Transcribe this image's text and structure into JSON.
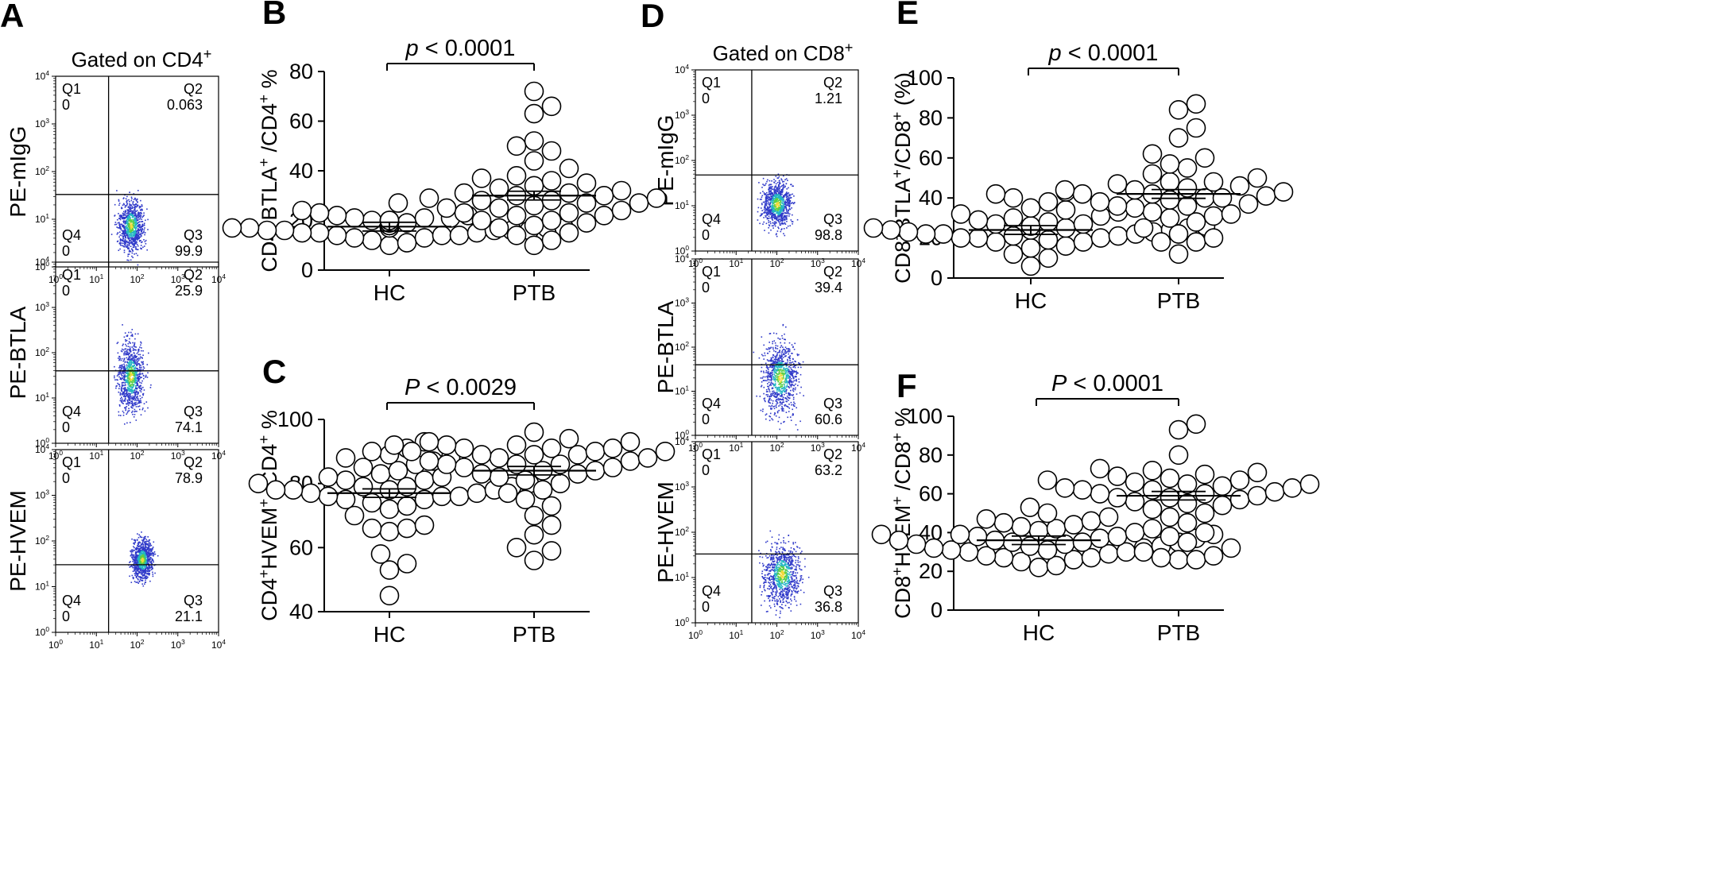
{
  "panel_letters": [
    "A",
    "B",
    "C",
    "D",
    "E",
    "F"
  ],
  "flow": [
    {
      "letter": "A",
      "title": "Gated on CD4",
      "title_sup": "+",
      "decade_labels": [
        "10",
        "10",
        "10",
        "10",
        "10"
      ],
      "decade_exps": [
        "0",
        "1",
        "2",
        "3",
        "4"
      ],
      "rows": [
        {
          "ylabel": "PE-mIgG",
          "quads": {
            "q1": "Q1",
            "q1v": "0",
            "q2": "Q2",
            "q2v": "0.063",
            "q3": "Q3",
            "q3v": "99.9",
            "q4": "Q4",
            "q4v": "0"
          }
        },
        {
          "ylabel": "PE-BTLA",
          "quads": {
            "q1": "Q1",
            "q1v": "0",
            "q2": "Q2",
            "q2v": "25.9",
            "q3": "Q3",
            "q3v": "74.1",
            "q4": "Q4",
            "q4v": "0"
          }
        },
        {
          "ylabel": "PE-HVEM",
          "quads": {
            "q1": "Q1",
            "q1v": "0",
            "q2": "Q2",
            "q2v": "78.9",
            "q3": "Q3",
            "q3v": "21.1",
            "q4": "Q4",
            "q4v": "0"
          }
        }
      ]
    },
    {
      "letter": "D",
      "title": "Gated on CD8",
      "title_sup": "+",
      "decade_labels": [
        "10",
        "10",
        "10",
        "10",
        "10"
      ],
      "decade_exps": [
        "0",
        "1",
        "2",
        "3",
        "4"
      ],
      "rows": [
        {
          "ylabel": "PE-mIgG",
          "quads": {
            "q1": "Q1",
            "q1v": "0",
            "q2": "Q2",
            "q2v": "1.21",
            "q3": "Q3",
            "q3v": "98.8",
            "q4": "Q4",
            "q4v": "0"
          }
        },
        {
          "ylabel": "PE-BTLA",
          "quads": {
            "q1": "Q1",
            "q1v": "0",
            "q2": "Q2",
            "q2v": "39.4",
            "q3": "Q3",
            "q3v": "60.6",
            "q4": "Q4",
            "q4v": "0"
          }
        },
        {
          "ylabel": "PE-HVEM",
          "quads": {
            "q1": "Q1",
            "q1v": "0",
            "q2": "Q2",
            "q2v": "63.2",
            "q3": "Q3",
            "q3v": "36.8",
            "q4": "Q4",
            "q4v": "0"
          }
        }
      ]
    }
  ],
  "chart_data": [
    {
      "letter": "B",
      "type": "scatter",
      "ylabel_parts": [
        "CD4",
        "+",
        "BTLA",
        "+",
        " /CD4",
        "+",
        " %"
      ],
      "ylim": [
        0,
        80
      ],
      "yticks": [
        0,
        20,
        40,
        60,
        80
      ],
      "categories": [
        "HC",
        "PTB"
      ],
      "p_prefix": "p",
      "p_text": " < 0.0001",
      "series": [
        {
          "name": "HC",
          "mean": 17.5,
          "values": [
            12,
            13,
            14,
            15,
            15,
            16,
            16,
            16,
            17,
            17,
            17,
            17,
            18,
            18,
            18,
            18,
            19,
            19,
            19,
            20,
            20,
            21,
            21,
            22,
            23,
            24,
            27,
            14,
            15,
            16,
            17,
            18,
            19,
            20,
            22,
            11,
            10,
            13,
            14,
            16,
            18,
            20,
            21
          ]
        },
        {
          "name": "PTB",
          "mean": 30,
          "values": [
            10,
            12,
            15,
            17,
            18,
            20,
            20,
            22,
            22,
            23,
            24,
            25,
            25,
            26,
            27,
            27,
            28,
            29,
            29,
            30,
            30,
            31,
            31,
            32,
            33,
            34,
            35,
            36,
            37,
            38,
            41,
            44,
            48,
            50,
            52,
            63,
            66,
            72,
            14,
            19,
            23,
            28
          ]
        }
      ]
    },
    {
      "letter": "C",
      "type": "scatter",
      "ylabel_parts": [
        "CD4",
        "+",
        "HVEM",
        "+",
        " /CD4",
        "+",
        " %"
      ],
      "ylim": [
        40,
        100
      ],
      "yticks": [
        40,
        60,
        80,
        100
      ],
      "categories": [
        "HC",
        "PTB"
      ],
      "p_prefix": "P",
      "p_text": " < 0.0029",
      "series": [
        {
          "name": "HC",
          "mean": 77,
          "values": [
            45,
            53,
            55,
            58,
            65,
            66,
            66,
            67,
            70,
            72,
            73,
            74,
            75,
            75,
            76,
            76,
            77,
            77,
            78,
            78,
            78,
            79,
            79,
            80,
            80,
            81,
            81,
            82,
            82,
            83,
            84,
            85,
            86,
            87,
            88,
            88,
            89,
            90,
            91,
            93,
            76,
            78,
            79
          ]
        },
        {
          "name": "PTB",
          "mean": 84,
          "values": [
            56,
            59,
            60,
            64,
            67,
            70,
            73,
            75,
            77,
            78,
            80,
            81,
            82,
            83,
            84,
            84,
            85,
            85,
            86,
            86,
            87,
            87,
            88,
            88,
            89,
            89,
            90,
            90,
            90,
            91,
            91,
            91,
            92,
            92,
            92,
            93,
            93,
            94,
            96,
            83,
            86,
            89
          ]
        }
      ]
    },
    {
      "letter": "E",
      "type": "scatter",
      "ylabel_parts": [
        "CD8",
        "+",
        "BTLA",
        "+",
        "/CD8",
        "+",
        " (%)"
      ],
      "ylim": [
        0,
        100
      ],
      "yticks": [
        0,
        20,
        40,
        60,
        80,
        100
      ],
      "categories": [
        "HC",
        "PTB"
      ],
      "p_prefix": "p",
      "p_text": " < 0.0001",
      "series": [
        {
          "name": "HC",
          "mean": 24,
          "values": [
            6,
            10,
            12,
            15,
            16,
            18,
            18,
            19,
            20,
            20,
            21,
            21,
            22,
            22,
            23,
            23,
            24,
            24,
            25,
            25,
            26,
            26,
            27,
            27,
            28,
            29,
            30,
            31,
            32,
            33,
            34,
            35,
            38,
            40,
            42,
            43,
            22,
            24,
            26,
            20,
            25
          ]
        },
        {
          "name": "PTB",
          "mean": 42,
          "values": [
            12,
            18,
            18,
            20,
            22,
            25,
            28,
            30,
            31,
            32,
            33,
            35,
            36,
            37,
            38,
            39,
            40,
            41,
            42,
            42,
            43,
            44,
            45,
            46,
            47,
            48,
            48,
            50,
            52,
            55,
            57,
            60,
            62,
            70,
            75,
            84,
            87,
            40,
            44,
            36
          ]
        }
      ]
    },
    {
      "letter": "F",
      "type": "scatter",
      "ylabel_parts": [
        "CD8",
        "+",
        "HVEM",
        "+",
        " /CD8",
        "+",
        " %"
      ],
      "ylim": [
        0,
        100
      ],
      "yticks": [
        0,
        20,
        40,
        60,
        80,
        100
      ],
      "categories": [
        "HC",
        "PTB"
      ],
      "p_prefix": "P",
      "p_text": " < 0.0001",
      "series": [
        {
          "name": "HC",
          "mean": 36,
          "values": [
            22,
            23,
            25,
            26,
            27,
            28,
            29,
            30,
            30,
            31,
            32,
            32,
            33,
            33,
            34,
            34,
            35,
            35,
            36,
            36,
            37,
            37,
            38,
            38,
            39,
            39,
            40,
            41,
            42,
            43,
            44,
            45,
            46,
            47,
            48,
            50,
            53,
            27,
            31,
            35,
            39
          ]
        },
        {
          "name": "PTB",
          "mean": 59,
          "values": [
            26,
            26,
            27,
            28,
            30,
            32,
            35,
            38,
            40,
            42,
            45,
            48,
            50,
            52,
            54,
            55,
            56,
            57,
            58,
            59,
            60,
            60,
            61,
            62,
            63,
            63,
            64,
            65,
            65,
            66,
            67,
            67,
            68,
            69,
            70,
            71,
            72,
            73,
            80,
            93,
            96,
            62,
            58
          ]
        }
      ]
    }
  ]
}
